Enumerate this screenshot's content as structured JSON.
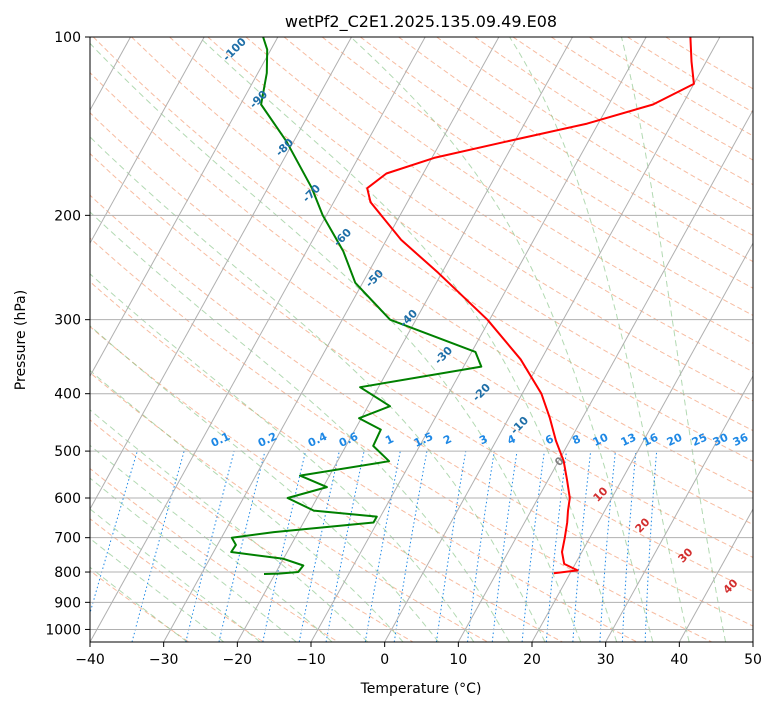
{
  "chart_data": {
    "type": "line",
    "title": "wetPf2_C2E1.2025.135.09.49.E08",
    "xlabel": "Temperature (°C)",
    "ylabel": "Pressure (hPa)",
    "xlim": [
      -40,
      50
    ],
    "ylim": [
      1050,
      100
    ],
    "y_scale": "log",
    "x_ticks": [
      -40,
      -30,
      -20,
      -10,
      0,
      10,
      20,
      30,
      40,
      50
    ],
    "y_ticks": [
      100,
      200,
      300,
      400,
      500,
      600,
      700,
      800,
      900,
      1000
    ],
    "grid": true,
    "series": [
      {
        "color": "#ff0000",
        "points": [
          [
            804,
            17.8
          ],
          [
            795,
            20.8
          ],
          [
            775,
            18.5
          ],
          [
            740,
            17.3
          ],
          [
            700,
            16.6
          ],
          [
            660,
            15.8
          ],
          [
            630,
            15.0
          ],
          [
            600,
            14.3
          ],
          [
            560,
            12.6
          ],
          [
            520,
            10.7
          ],
          [
            480,
            8.1
          ],
          [
            440,
            5.6
          ],
          [
            400,
            2.6
          ],
          [
            350,
            -2.8
          ],
          [
            300,
            -10.3
          ],
          [
            250,
            -20.5
          ],
          [
            220,
            -28.0
          ],
          [
            190,
            -35.0
          ],
          [
            180,
            -36.5
          ],
          [
            170,
            -35.0
          ],
          [
            160,
            -29.7
          ],
          [
            150,
            -21.0
          ],
          [
            140,
            -11.5
          ],
          [
            130,
            -4.0
          ],
          [
            120,
            0.0
          ],
          [
            110,
            -2.0
          ],
          [
            100,
            -4.0
          ]
        ]
      },
      {
        "color": "#008000",
        "points": [
          [
            806,
            -21.5
          ],
          [
            805,
            -19.5
          ],
          [
            800,
            -17.0
          ],
          [
            780,
            -16.8
          ],
          [
            760,
            -20.0
          ],
          [
            740,
            -27.6
          ],
          [
            720,
            -27.5
          ],
          [
            700,
            -28.6
          ],
          [
            685,
            -23.3
          ],
          [
            660,
            -10.5
          ],
          [
            645,
            -10.5
          ],
          [
            630,
            -19.5
          ],
          [
            600,
            -24.0
          ],
          [
            575,
            -19.5
          ],
          [
            550,
            -24.0
          ],
          [
            520,
            -13.0
          ],
          [
            490,
            -16.3
          ],
          [
            460,
            -16.5
          ],
          [
            440,
            -20.3
          ],
          [
            420,
            -17.0
          ],
          [
            390,
            -22.5
          ],
          [
            360,
            -7.6
          ],
          [
            340,
            -9.5
          ],
          [
            300,
            -23.5
          ],
          [
            260,
            -31.0
          ],
          [
            230,
            -35.0
          ],
          [
            200,
            -40.5
          ],
          [
            180,
            -44.0
          ],
          [
            150,
            -51.0
          ],
          [
            130,
            -57.2
          ],
          [
            115,
            -58.8
          ],
          [
            105,
            -60.5
          ],
          [
            100,
            -62.0
          ]
        ]
      }
    ],
    "annotations": {
      "dry_adiabat_labels": [
        "-100",
        "-90",
        "-80",
        "-70",
        "-60",
        "-50",
        "-40",
        "-30",
        "-20",
        "-10"
      ],
      "mixing_ratio_labels": [
        "0.1",
        "0.2",
        "0.4",
        "0.6",
        "1",
        "1.5",
        "2",
        "3",
        "4",
        "6",
        "8",
        "10",
        "13",
        "16",
        "20",
        "25",
        "30",
        "36"
      ],
      "moist_adiabat_labels": [
        "0",
        "10",
        "20",
        "30",
        "40"
      ]
    },
    "colors": {
      "temperature": "#ff0000",
      "dewpoint": "#008000",
      "dry_adiabat_label": "#1f6fa8",
      "mixing_ratio": "#1e88e5",
      "moist_adiabat_label": "#d32f2f",
      "moist_adiabat_zero": "#808080"
    }
  }
}
